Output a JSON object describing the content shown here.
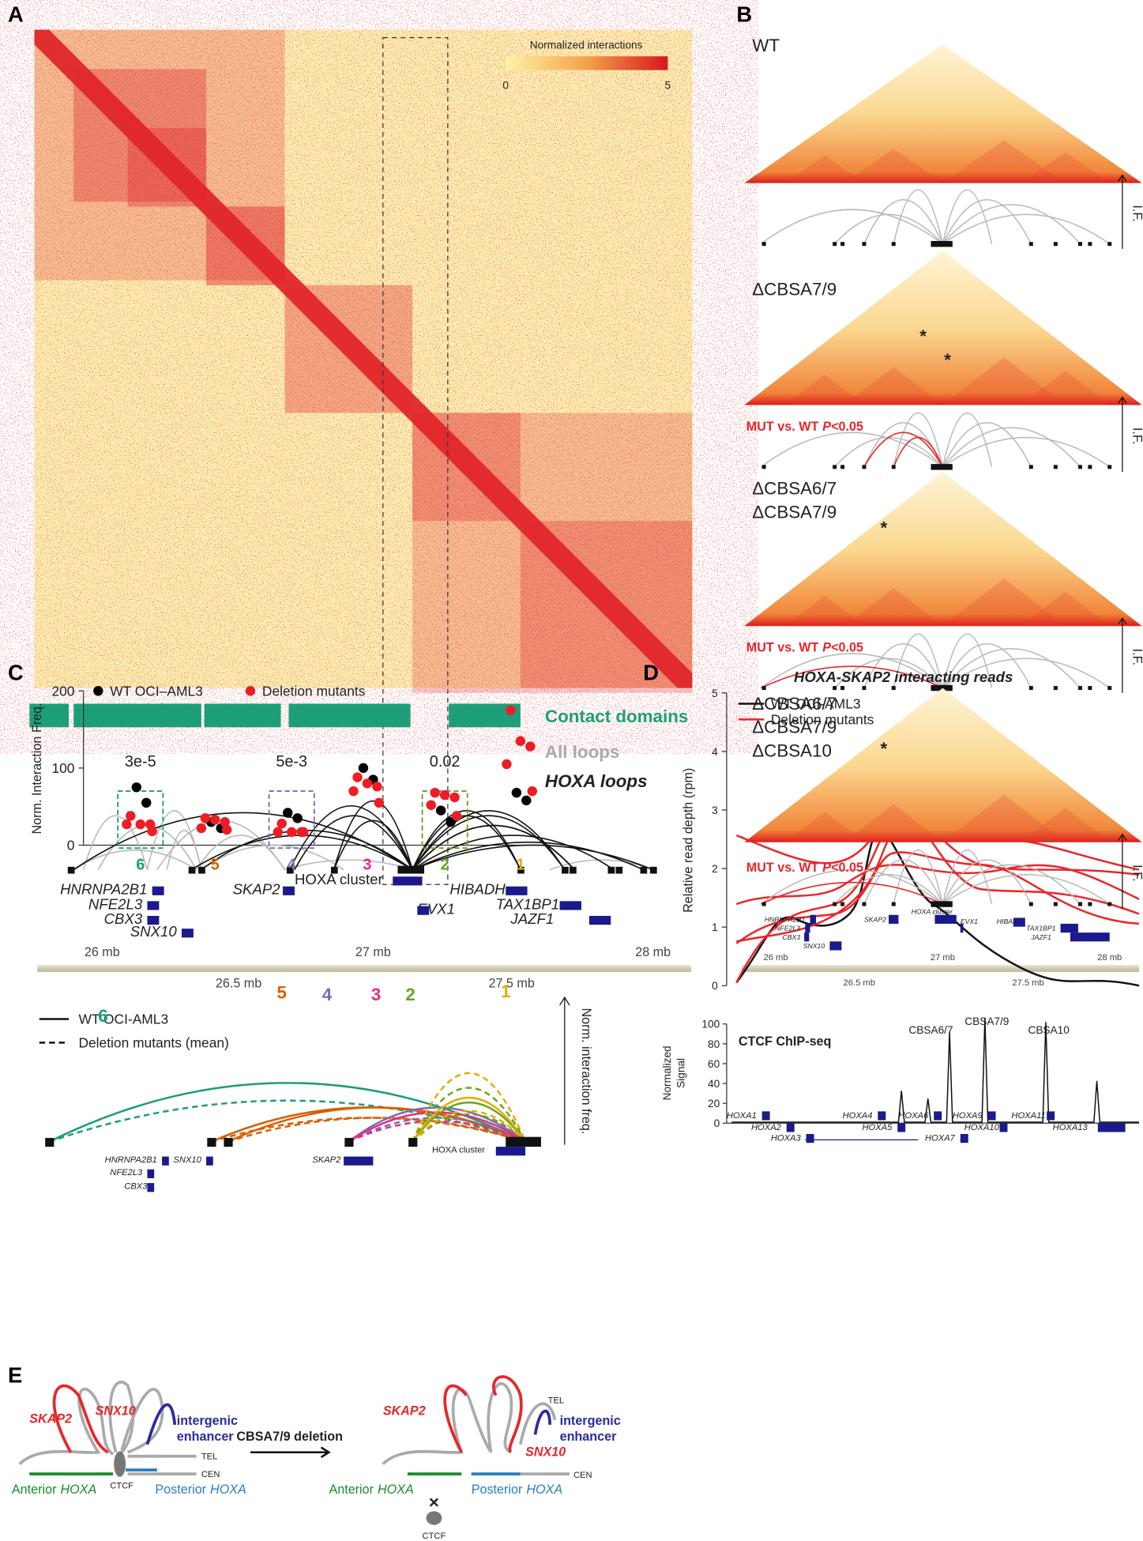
{
  "panel_a": {
    "label": "A",
    "colorbar_title": "Normalized interactions",
    "colorbar_ticks": [
      "0",
      "5"
    ],
    "tracks": [
      "Contact domains",
      "All loops",
      "HOXA loops"
    ],
    "genes": [
      "HNRNPA2B1",
      "NFE2L3",
      "CBX3",
      "SNX10",
      "SKAP2",
      "HOXA cluster",
      "EVX1",
      "HIBADH",
      "TAX1BP1",
      "JAZF1"
    ],
    "axis_top": [
      "26 mb",
      "27 mb",
      "28 mb"
    ],
    "axis_bottom": [
      "26.5 mb",
      "27.5 mb"
    ]
  },
  "panel_b": {
    "label": "B",
    "conditions": [
      [
        "WT"
      ],
      [
        "ΔCBSA7/9"
      ],
      [
        "ΔCBSA6/7",
        "ΔCBSA7/9"
      ],
      [
        "ΔCBSA6/7",
        "ΔCBSA7/9",
        "ΔCBSA10"
      ]
    ],
    "sig_prefix": "MUT vs. WT",
    "sig_p": "P",
    "sig_suffix": "<0.05",
    "if_label": "I.F.",
    "star": "*"
  },
  "panel_c": {
    "label": "C",
    "ylabel": "Norm. Interaction Freq.",
    "ylim": [
      0,
      200
    ],
    "yticks": [
      0,
      100,
      200
    ],
    "categories": [
      "6",
      "5",
      "4",
      "3",
      "2",
      "1"
    ],
    "category_colors": [
      "#1b9e77",
      "#d95f02",
      "#7570b3",
      "#e7298a",
      "#66a61e",
      "#e6ab02"
    ],
    "pvalues": [
      "3e-5",
      "5e-3",
      "0.02"
    ],
    "series": [
      {
        "name": "WT OCI–AML3",
        "color": "#000000",
        "values": [
          [
            75,
            55
          ],
          [
            30,
            22
          ],
          [
            42,
            35
          ],
          [
            100,
            85
          ],
          [
            45,
            30
          ],
          [
            68,
            58
          ]
        ]
      },
      {
        "name": "Deletion mutants",
        "color": "#ee1c25",
        "values": [
          [
            38,
            27,
            27,
            27,
            18
          ],
          [
            35,
            33,
            30,
            22,
            20
          ],
          [
            28,
            17,
            17,
            17,
            17
          ],
          [
            88,
            80,
            76,
            70,
            55
          ],
          [
            68,
            65,
            62,
            52,
            38
          ],
          [
            175,
            135,
            128,
            105,
            70
          ]
        ]
      }
    ],
    "line_legend": [
      "WT OCI-AML3",
      "Deletion mutants (mean)"
    ],
    "arrow_label": "Norm. interaction freq."
  },
  "panel_d": {
    "label": "D",
    "title": "HOXA-SKAP2 interacting reads",
    "legend": [
      "WT OCI-AML3",
      "Deletion mutants"
    ],
    "ylabel": "Relative read depth (rpm)",
    "ylim": [
      0,
      5
    ],
    "yticks": [
      0,
      1,
      2,
      3,
      4,
      5
    ],
    "ctcf_title": "CTCF ChIP-seq",
    "ctcf_ylabel": [
      "Normalized",
      "Signal"
    ],
    "ctcf_ylim": [
      0,
      100
    ],
    "ctcf_yticks": [
      0,
      20,
      40,
      60,
      80,
      100
    ],
    "peaks": [
      "CBSA6/7",
      "CBSA7/9",
      "CBSA10"
    ],
    "genes": [
      "HOXA1",
      "HOXA2",
      "HOXA3",
      "HOXA4",
      "HOXA5",
      "HOXA6",
      "HOXA7",
      "HOXA9",
      "HOXA10",
      "HOXA11",
      "HOXA13"
    ]
  },
  "panel_e": {
    "label": "E",
    "skap2": "SKAP2",
    "snx10": "SNX10",
    "enhancer": [
      "intergenic",
      "enhancer"
    ],
    "tel": "TEL",
    "cen": "CEN",
    "ctcf": "CTCF",
    "anterior": "Anterior",
    "posterior": "Posterior",
    "hoxa": "HOXA",
    "arrow_label": "CBSA7/9 deletion",
    "cross": "×"
  }
}
